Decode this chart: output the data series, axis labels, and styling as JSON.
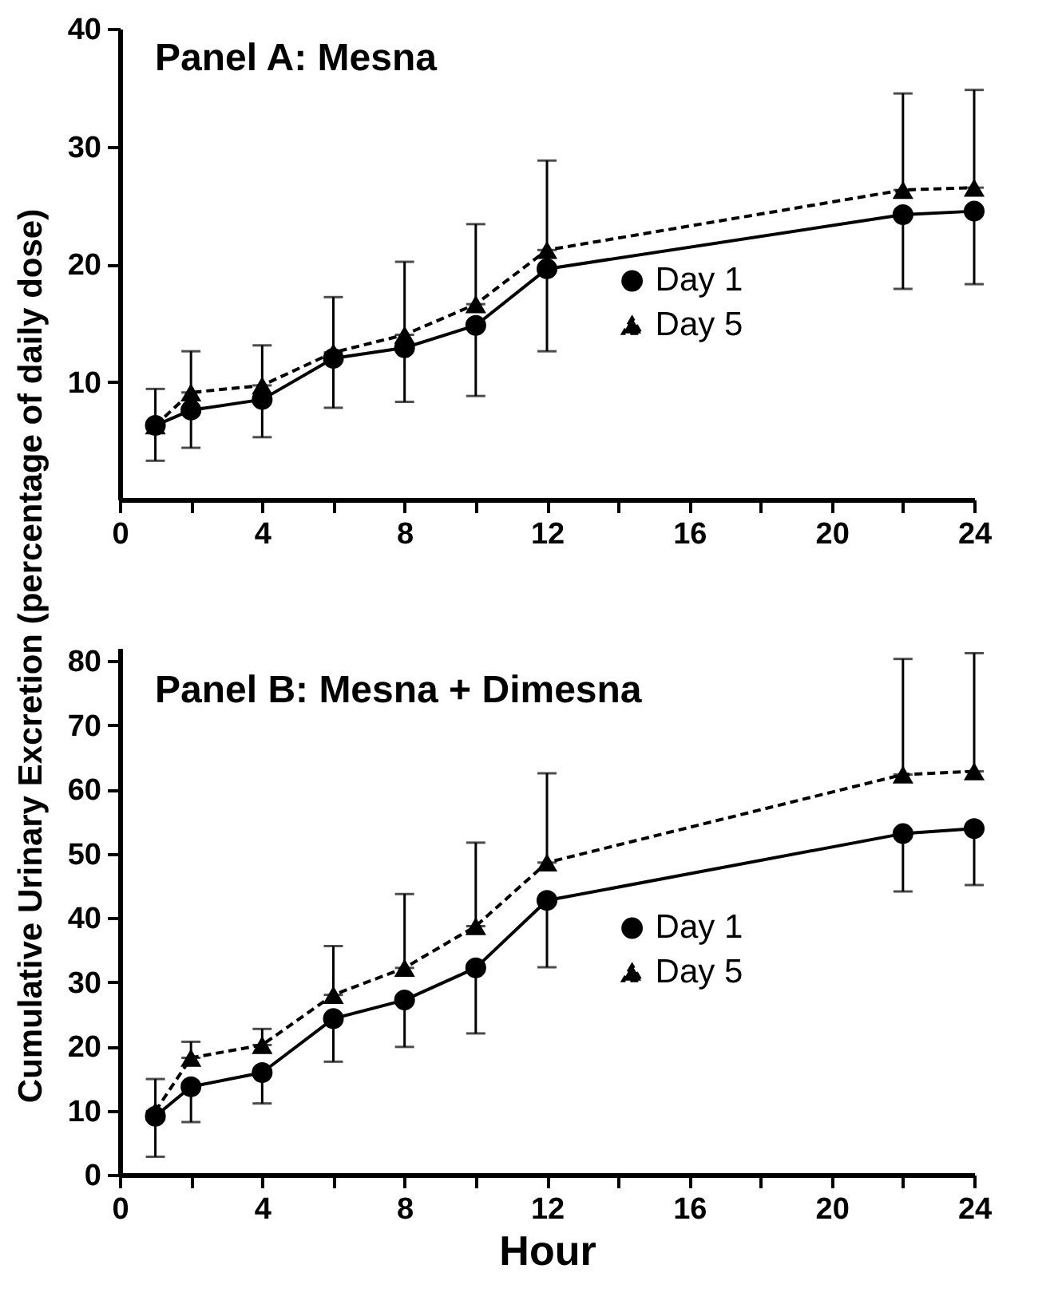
{
  "chart_data": [
    {
      "type": "line",
      "title": "Panel A:   Mesna",
      "ylabel": "Cumulative Urinary Excretion (percentage of daily dose)",
      "x": [
        1,
        2,
        4,
        6,
        8,
        10,
        12,
        22,
        24
      ],
      "xlim": [
        0,
        24
      ],
      "xticks": [
        0,
        {
          "value": 2,
          "label": null
        },
        4,
        {
          "value": 6,
          "label": null
        },
        8,
        {
          "value": 10,
          "label": null
        },
        12,
        {
          "value": 14,
          "label": null
        },
        16,
        {
          "value": 18,
          "label": null
        },
        20,
        {
          "value": 22,
          "label": null
        },
        24
      ],
      "ylim": [
        0,
        40
      ],
      "yticks": [
        10,
        20,
        30,
        40
      ],
      "legend": "right",
      "grid": false,
      "series": [
        {
          "name": "Day 1",
          "color": "#000000",
          "marker": "circle",
          "line_style": "solid",
          "values": [
            6.3,
            7.6,
            8.5,
            12.0,
            12.9,
            14.8,
            19.6,
            24.2,
            24.5
          ],
          "errors": [
            [
              3.3,
              6.3
            ],
            [
              4.4,
              7.6
            ],
            [
              5.3,
              8.5
            ],
            [
              7.8,
              12.0
            ],
            [
              8.3,
              12.9
            ],
            [
              8.8,
              14.8
            ],
            [
              12.6,
              19.6
            ],
            [
              17.9,
              24.2
            ],
            [
              18.3,
              24.5
            ]
          ]
        },
        {
          "name": "Day 5",
          "color": "#000000",
          "marker": "triangle",
          "line_style": "dashed",
          "values": [
            6.3,
            9.1,
            9.7,
            12.5,
            14.0,
            16.6,
            21.2,
            26.3,
            26.5
          ],
          "errors": [
            [
              6.3,
              9.4
            ],
            [
              9.1,
              12.6
            ],
            [
              9.7,
              13.1
            ],
            [
              12.5,
              17.2
            ],
            [
              14.0,
              20.2
            ],
            [
              16.6,
              23.4
            ],
            [
              21.2,
              28.8
            ],
            [
              26.3,
              34.5
            ],
            [
              26.5,
              34.8
            ]
          ]
        }
      ]
    },
    {
      "type": "line",
      "title": "Panel B:   Mesna + Dimesna",
      "xlabel": "Hour",
      "x": [
        1,
        2,
        4,
        6,
        8,
        10,
        12,
        22,
        24
      ],
      "xlim": [
        0,
        24
      ],
      "xticks": [
        0,
        {
          "value": 2,
          "label": null
        },
        4,
        {
          "value": 6,
          "label": null
        },
        8,
        {
          "value": 10,
          "label": null
        },
        12,
        {
          "value": 14,
          "label": null
        },
        16,
        {
          "value": 18,
          "label": null
        },
        20,
        {
          "value": 22,
          "label": null
        },
        24
      ],
      "ylim": [
        0,
        82
      ],
      "yticks": [
        0,
        10,
        20,
        30,
        40,
        50,
        60,
        70,
        80
      ],
      "legend": "right",
      "grid": false,
      "series": [
        {
          "name": "Day 1",
          "color": "#000000",
          "marker": "circle",
          "line_style": "solid",
          "values": [
            9.1,
            13.7,
            15.9,
            24.3,
            27.2,
            32.2,
            42.7,
            53.1,
            53.9
          ],
          "errors": [
            [
              2.8,
              9.1
            ],
            [
              8.2,
              13.7
            ],
            [
              11.1,
              15.9
            ],
            [
              17.6,
              24.3
            ],
            [
              19.9,
              27.2
            ],
            [
              22.0,
              32.2
            ],
            [
              32.3,
              42.7
            ],
            [
              44.1,
              53.1
            ],
            [
              45.1,
              53.9
            ]
          ]
        },
        {
          "name": "Day 5",
          "color": "#000000",
          "marker": "triangle",
          "line_style": "dashed",
          "values": [
            9.9,
            18.2,
            20.2,
            28.0,
            32.2,
            38.7,
            48.6,
            62.3,
            62.8
          ],
          "errors": [
            [
              9.9,
              14.9
            ],
            [
              18.2,
              20.7
            ],
            [
              20.2,
              22.7
            ],
            [
              28.0,
              35.6
            ],
            [
              32.2,
              43.7
            ],
            [
              38.7,
              51.7
            ],
            [
              48.6,
              62.5
            ],
            [
              62.3,
              80.3
            ],
            [
              62.8,
              81.2
            ]
          ]
        }
      ]
    }
  ]
}
